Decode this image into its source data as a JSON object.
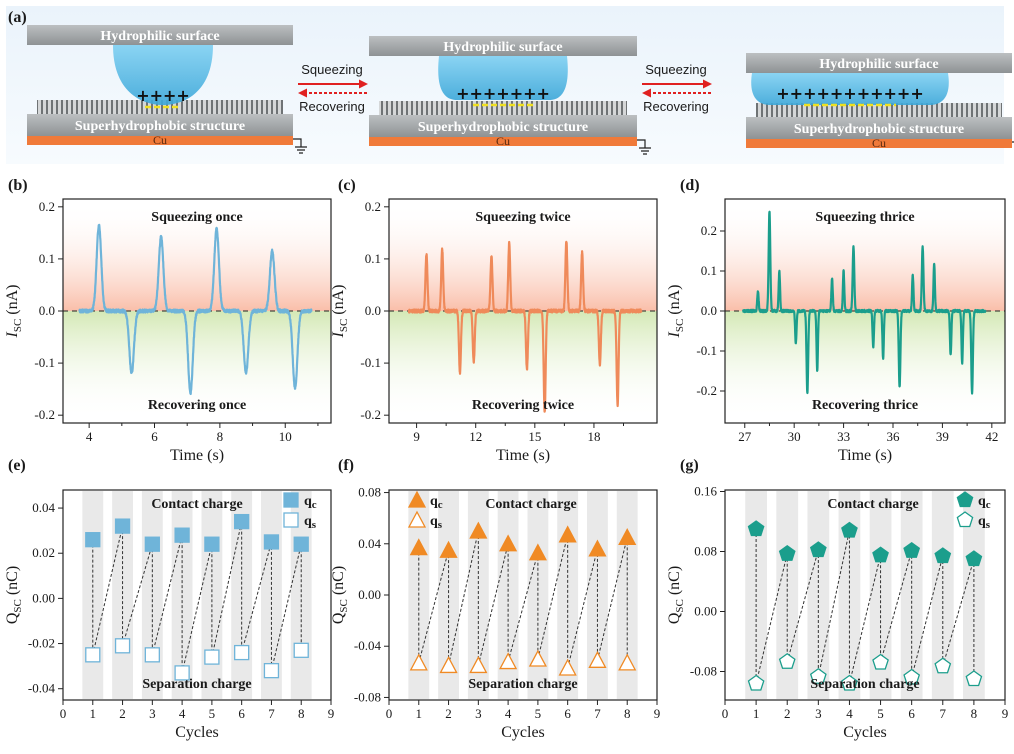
{
  "panel_a": {
    "label": "(a)",
    "stages": [
      {
        "top_label": "Hydrophilic surface",
        "bottom_label": "Superhydrophobic structure",
        "cu_label": "Cu",
        "charges": "++++"
      },
      {
        "top_label": "Hydrophilic surface",
        "bottom_label": "Superhydrophobic structure",
        "cu_label": "Cu",
        "charges": "+++++++"
      },
      {
        "top_label": "Hydrophilic surface",
        "bottom_label": "Superhydrophobic structure",
        "cu_label": "Cu",
        "charges": "+++++++++++"
      }
    ],
    "arrows": [
      {
        "forward": "Squeezing",
        "backward": "Recovering"
      },
      {
        "forward": "Squeezing",
        "backward": "Recovering"
      }
    ],
    "colors": {
      "droplet": "#5bc0eb",
      "plate": "#a9acad",
      "cu": "#f07a3a",
      "forward_arrow": "#e02020",
      "backward_arrow": "#e02020",
      "negative_charge": "#f0e020"
    }
  },
  "chart_data": [
    {
      "type": "line",
      "label": "(b)",
      "xlabel": "Time (s)",
      "ylabel_main": "I",
      "ylabel_sub": "SC",
      "ylabel_unit": " (nA)",
      "xlim": [
        3.2,
        11.4
      ],
      "ylim": [
        -0.215,
        0.215
      ],
      "xticks": [
        4,
        6,
        8,
        10
      ],
      "yticks": [
        -0.2,
        -0.1,
        0.0,
        0.1,
        0.2
      ],
      "ytick_labels": [
        "-0.2",
        "-0.1",
        "0.0",
        "0.1",
        "0.2"
      ],
      "top_text": "Squeezing once",
      "bottom_text": "Recovering once",
      "color": "#6fb4d9",
      "x_range": [
        3.7,
        10.8
      ],
      "peaks": [
        {
          "t": 4.3,
          "a": 0.165,
          "w": 0.1
        },
        {
          "t": 5.3,
          "a": -0.12,
          "w": 0.1
        },
        {
          "t": 6.2,
          "a": 0.142,
          "w": 0.1
        },
        {
          "t": 7.1,
          "a": -0.158,
          "w": 0.1
        },
        {
          "t": 7.9,
          "a": 0.158,
          "w": 0.1
        },
        {
          "t": 8.8,
          "a": -0.118,
          "w": 0.1
        },
        {
          "t": 9.6,
          "a": 0.115,
          "w": 0.1
        },
        {
          "t": 10.3,
          "a": -0.148,
          "w": 0.1
        }
      ]
    },
    {
      "type": "line",
      "label": "(c)",
      "xlabel": "Time (s)",
      "ylabel_main": "I",
      "ylabel_sub": "SC",
      "ylabel_unit": " (nA)",
      "xlim": [
        7.6,
        21.2
      ],
      "ylim": [
        -0.215,
        0.215
      ],
      "xticks": [
        9,
        12,
        15,
        18
      ],
      "yticks": [
        -0.2,
        -0.1,
        0.0,
        0.1,
        0.2
      ],
      "ytick_labels": [
        "-0.2",
        "-0.1",
        "0.0",
        "0.1",
        "0.2"
      ],
      "top_text": "Squeezing twice",
      "bottom_text": "Recovering twice",
      "color": "#ef8a5a",
      "x_range": [
        8.6,
        20.4
      ],
      "peaks": [
        {
          "t": 9.5,
          "a": 0.11,
          "w": 0.07
        },
        {
          "t": 10.3,
          "a": 0.118,
          "w": 0.07
        },
        {
          "t": 11.2,
          "a": -0.118,
          "w": 0.07
        },
        {
          "t": 11.9,
          "a": -0.098,
          "w": 0.07
        },
        {
          "t": 12.8,
          "a": 0.105,
          "w": 0.07
        },
        {
          "t": 13.7,
          "a": 0.13,
          "w": 0.07
        },
        {
          "t": 14.6,
          "a": -0.112,
          "w": 0.07
        },
        {
          "t": 15.5,
          "a": -0.195,
          "w": 0.07
        },
        {
          "t": 16.6,
          "a": 0.135,
          "w": 0.07
        },
        {
          "t": 17.4,
          "a": 0.112,
          "w": 0.07
        },
        {
          "t": 18.3,
          "a": -0.102,
          "w": 0.07
        },
        {
          "t": 19.2,
          "a": -0.18,
          "w": 0.07
        }
      ]
    },
    {
      "type": "line",
      "label": "(d)",
      "xlabel": "Time (s)",
      "ylabel_main": "I",
      "ylabel_sub": "SC",
      "ylabel_unit": " (nA)",
      "xlim": [
        25.8,
        42.8
      ],
      "ylim": [
        -0.28,
        0.28
      ],
      "xticks": [
        27,
        30,
        33,
        36,
        39,
        42
      ],
      "yticks": [
        -0.2,
        -0.1,
        0.0,
        0.1,
        0.2
      ],
      "ytick_labels": [
        "-0.2",
        "-0.1",
        "0.0",
        "0.1",
        "0.2"
      ],
      "top_text": "Squeezing thrice",
      "bottom_text": "Recovering thrice",
      "color": "#1b9e8c",
      "x_range": [
        26.9,
        41.6
      ],
      "peaks": [
        {
          "t": 27.8,
          "a": 0.05,
          "w": 0.06
        },
        {
          "t": 28.5,
          "a": 0.25,
          "w": 0.07
        },
        {
          "t": 29.1,
          "a": 0.1,
          "w": 0.06
        },
        {
          "t": 30.1,
          "a": -0.08,
          "w": 0.06
        },
        {
          "t": 30.8,
          "a": -0.205,
          "w": 0.07
        },
        {
          "t": 31.4,
          "a": -0.15,
          "w": 0.06
        },
        {
          "t": 32.3,
          "a": 0.08,
          "w": 0.06
        },
        {
          "t": 33.0,
          "a": 0.1,
          "w": 0.06
        },
        {
          "t": 33.6,
          "a": 0.16,
          "w": 0.07
        },
        {
          "t": 34.8,
          "a": -0.09,
          "w": 0.06
        },
        {
          "t": 35.4,
          "a": -0.12,
          "w": 0.06
        },
        {
          "t": 36.4,
          "a": -0.19,
          "w": 0.07
        },
        {
          "t": 37.2,
          "a": 0.09,
          "w": 0.06
        },
        {
          "t": 37.8,
          "a": 0.16,
          "w": 0.07
        },
        {
          "t": 38.5,
          "a": 0.12,
          "w": 0.06
        },
        {
          "t": 39.5,
          "a": -0.11,
          "w": 0.06
        },
        {
          "t": 40.2,
          "a": -0.13,
          "w": 0.06
        },
        {
          "t": 40.8,
          "a": -0.205,
          "w": 0.07
        }
      ]
    },
    {
      "type": "scatter",
      "label": "(e)",
      "xlabel": "Cycles",
      "ylabel_main": "Q",
      "ylabel_sub": "SC",
      "ylabel_unit": " (nC)",
      "xlim": [
        0,
        9
      ],
      "ylim": [
        -0.045,
        0.048
      ],
      "xticks": [
        0,
        1,
        2,
        3,
        4,
        5,
        6,
        7,
        8,
        9
      ],
      "yticks": [
        -0.04,
        -0.02,
        0.0,
        0.02,
        0.04
      ],
      "ytick_labels": [
        "-0.04",
        "-0.02",
        "0.00",
        "0.02",
        "0.04"
      ],
      "top_text": "Contact charge",
      "bottom_text": "Separation charge",
      "legend_main": "q",
      "legend": [
        {
          "sub": "c",
          "filled": true
        },
        {
          "sub": "s",
          "filled": false
        }
      ],
      "marker": "square",
      "color": "#6fb4d9",
      "cycles": [
        1,
        2,
        3,
        4,
        5,
        6,
        7,
        8
      ],
      "qc": [
        0.026,
        0.032,
        0.024,
        0.028,
        0.024,
        0.034,
        0.025,
        0.024
      ],
      "qs": [
        -0.025,
        -0.021,
        -0.025,
        -0.033,
        -0.026,
        -0.024,
        -0.032,
        -0.023
      ]
    },
    {
      "type": "scatter",
      "label": "(f)",
      "xlabel": "Cycles",
      "ylabel_main": "Q",
      "ylabel_sub": "SC",
      "ylabel_unit": " (nC)",
      "xlim": [
        0,
        9
      ],
      "ylim": [
        -0.082,
        0.082
      ],
      "xticks": [
        0,
        1,
        2,
        3,
        4,
        5,
        6,
        7,
        8,
        9
      ],
      "yticks": [
        -0.08,
        -0.04,
        0.0,
        0.04,
        0.08
      ],
      "ytick_labels": [
        "-0.08",
        "-0.04",
        "0.00",
        "0.04",
        "0.08"
      ],
      "top_text": "Contact charge",
      "bottom_text": "Separation charge",
      "legend_main": "q",
      "legend": [
        {
          "sub": "c",
          "filled": true
        },
        {
          "sub": "s",
          "filled": false
        }
      ],
      "marker": "triangle",
      "color": "#f08a24",
      "cycles": [
        1,
        2,
        3,
        4,
        5,
        6,
        7,
        8
      ],
      "qc": [
        0.037,
        0.035,
        0.05,
        0.04,
        0.033,
        0.047,
        0.036,
        0.045
      ],
      "qs": [
        -0.053,
        -0.055,
        -0.055,
        -0.052,
        -0.05,
        -0.057,
        -0.051,
        -0.053
      ]
    },
    {
      "type": "scatter",
      "label": "(g)",
      "xlabel": "Cycles",
      "ylabel_main": "Q",
      "ylabel_sub": "SC",
      "ylabel_unit": " (nC)",
      "xlim": [
        0,
        9
      ],
      "ylim": [
        -0.118,
        0.162
      ],
      "xticks": [
        0,
        1,
        2,
        3,
        4,
        5,
        6,
        7,
        8,
        9
      ],
      "yticks": [
        -0.08,
        0.0,
        0.08,
        0.16
      ],
      "ytick_labels": [
        "-0.08",
        "0.00",
        "0.08",
        "0.16"
      ],
      "top_text": "Contact charge",
      "bottom_text": "Separation charge",
      "legend_main": "q",
      "legend": [
        {
          "sub": "c",
          "filled": true
        },
        {
          "sub": "s",
          "filled": false
        }
      ],
      "marker": "pentagon",
      "color": "#1b9e8c",
      "cycles": [
        1,
        2,
        3,
        4,
        5,
        6,
        7,
        8
      ],
      "qc": [
        0.11,
        0.077,
        0.082,
        0.108,
        0.075,
        0.081,
        0.074,
        0.07
      ],
      "qs": [
        -0.096,
        -0.067,
        -0.087,
        -0.096,
        -0.068,
        -0.088,
        -0.073,
        -0.09
      ]
    }
  ]
}
